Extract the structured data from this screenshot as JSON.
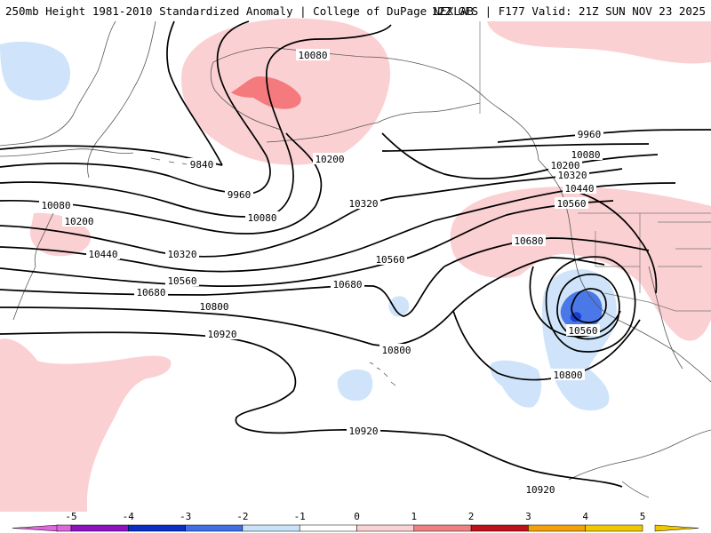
{
  "header": {
    "left_title": "250mb Height 1981-2010 Standardized Anomaly | College of DuPage NEXLAB",
    "right_title": "12Z GFS | F177 Valid: 21Z SUN NOV 23 2025"
  },
  "legend": {
    "ticks": [
      "-5",
      "-4",
      "-3",
      "-2",
      "-1",
      "0",
      "1",
      "2",
      "3",
      "4",
      "5"
    ],
    "colors": [
      "#e066e0",
      "#8f10c0",
      "#0a2ec4",
      "#3f6ee6",
      "#c9e2fa",
      "#ffffff",
      "#fbd2d4",
      "#f28083",
      "#c0101a",
      "#f5a006",
      "#f0c800"
    ]
  },
  "shading_colors": {
    "neg1": "#cfe4fa",
    "neg2": "#4a78e8",
    "neg3": "#1a3fd0",
    "pos1": "#fbd0d3",
    "pos2": "#f57a7e"
  },
  "contour_labels": [
    "9840",
    "9960",
    "10080",
    "10200",
    "10320",
    "10440",
    "10560",
    "10680",
    "10800",
    "10920"
  ]
}
